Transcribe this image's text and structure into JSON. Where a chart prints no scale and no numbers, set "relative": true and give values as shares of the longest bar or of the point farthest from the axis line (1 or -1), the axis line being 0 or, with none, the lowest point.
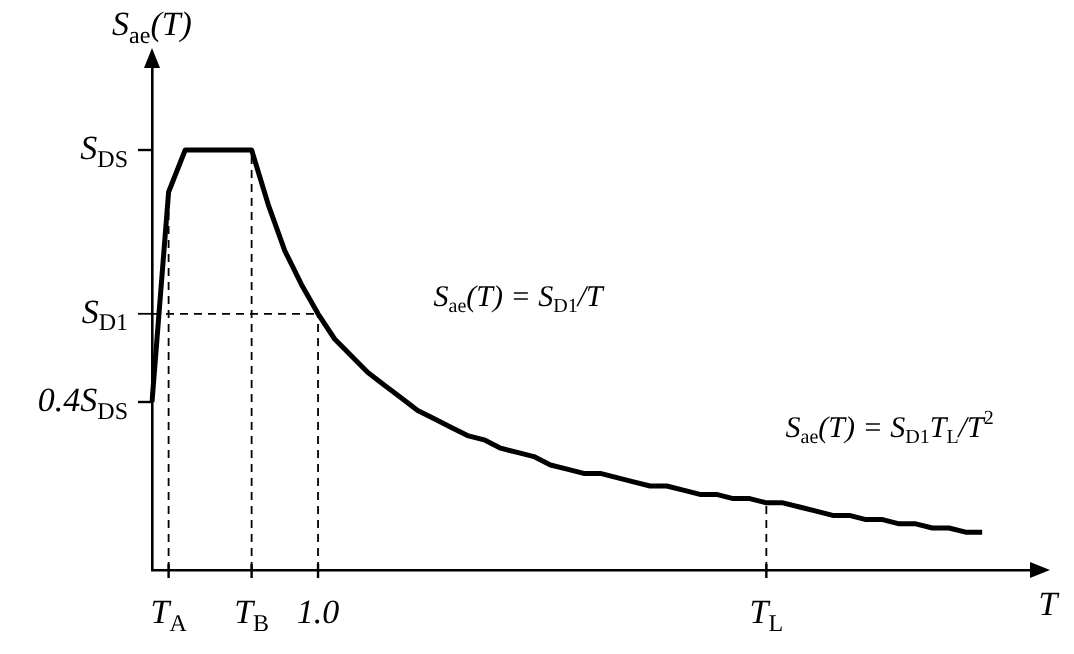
{
  "chart_data": {
    "type": "line",
    "relative": true,
    "xlabel": "T",
    "ylabel": "S$_{ae}$(T)",
    "categories": [
      null,
      "T$_{A}$",
      null,
      null,
      null,
      null,
      "T$_{B}$",
      null,
      null,
      null,
      "1.0",
      null,
      null,
      null,
      null,
      null,
      null,
      null,
      null,
      null,
      null,
      null,
      null,
      null,
      null,
      null,
      null,
      null,
      null,
      null,
      null,
      null,
      null,
      null,
      null,
      null,
      null,
      "T$_{L}$",
      null,
      null,
      null,
      null,
      null,
      null,
      null,
      null,
      null,
      null,
      null,
      null,
      null,
      null,
      null,
      null
    ],
    "grid": false,
    "legend": false,
    "marker": "none",
    "series": [
      {
        "color": "#000000",
        "values": [
          0.4,
          0.9,
          1,
          1,
          1,
          1,
          1,
          0.87,
          0.76,
          0.68,
          0.61,
          0.55,
          0.51,
          0.47,
          0.44,
          0.41,
          0.38,
          0.36,
          0.34,
          0.32,
          0.31,
          0.29,
          0.28,
          0.27,
          0.25,
          0.24,
          0.23,
          0.23,
          0.22,
          0.21,
          0.2,
          0.2,
          0.19,
          0.18,
          0.18,
          0.17,
          0.17,
          0.16,
          0.16,
          0.15,
          0.14,
          0.13,
          0.13,
          0.12,
          0.12,
          0.11,
          0.11,
          0.1,
          0.1,
          0.09,
          0.09,
          null,
          null,
          null
        ]
      }
    ],
    "ref_lines": [
      {
        "axis": "x",
        "value": "T$_{A}$",
        "color": "#000000",
        "line_style": "dashed"
      },
      {
        "axis": "x",
        "value": "T$_{B}$",
        "color": "#000000",
        "line_style": "dashed"
      },
      {
        "axis": "x",
        "value": "1.0",
        "color": "#000000",
        "line_style": "dashed"
      },
      {
        "axis": "x",
        "value": "T$_{L}$",
        "color": "#000000",
        "line_style": "dashed"
      },
      {
        "axis": "y",
        "value": 0.61,
        "label": "S$_{D1}$",
        "color": "#000000",
        "line_style": "dashed"
      }
    ],
    "annotations": [
      "S$_{DS}$",
      "0.4S$_{DS}$",
      "S$_{ae}$(T) = S$_{D1}$/T",
      "S$_{ae}$(T) = S$_{D1}$T$_{L}$/T$^{2}$"
    ]
  }
}
